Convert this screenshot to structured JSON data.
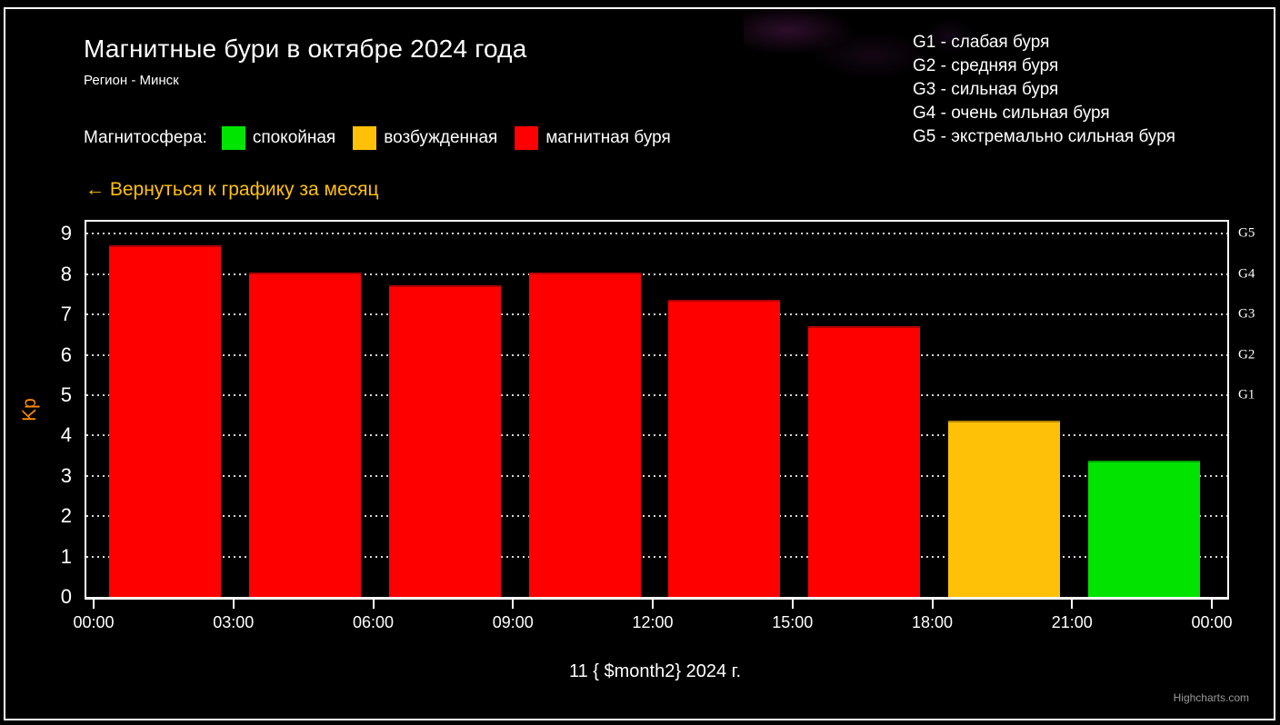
{
  "title": "Магнитные бури в октябре 2024 года",
  "subtitle": "Регион - Минск",
  "legend": {
    "label": "Магнитосфера:",
    "items": [
      {
        "name": "спокойная",
        "color": "#00e400"
      },
      {
        "name": "возбужденная",
        "color": "#ffc107"
      },
      {
        "name": "магнитная буря",
        "color": "#ff0000"
      }
    ]
  },
  "g_scale": [
    "G1 - слабая буря",
    "G2 - средняя буря",
    "G3 - сильная буря",
    "G4 - очень сильная буря",
    "G5 - экстремально сильная буря"
  ],
  "back_link": "← Вернуться к графику за месяц",
  "credits": "Highcharts.com",
  "chart_data": {
    "type": "bar",
    "title": "Магнитные бури в октябре 2024 года",
    "subtitle": "Регион - Минск",
    "x_tick_labels": [
      "00:00",
      "03:00",
      "06:00",
      "09:00",
      "12:00",
      "15:00",
      "18:00",
      "21:00",
      "00:00"
    ],
    "values": [
      8.67,
      8,
      7.67,
      8,
      7.33,
      6.67,
      4.33,
      3.33
    ],
    "bar_states": [
      "storm",
      "storm",
      "storm",
      "storm",
      "storm",
      "storm",
      "excited",
      "quiet"
    ],
    "colors": {
      "quiet": "#00e400",
      "excited": "#ffc107",
      "storm": "#ff0000"
    },
    "ylabel": "Kp",
    "xlabel": "11 { $month2} 2024 г.",
    "ylim": [
      0,
      9.3
    ],
    "yticks": [
      0,
      1,
      2,
      3,
      4,
      5,
      6,
      7,
      8,
      9
    ],
    "right_axis_labels": [
      {
        "value": 5,
        "label": "G1"
      },
      {
        "value": 6,
        "label": "G2"
      },
      {
        "value": 7,
        "label": "G3"
      },
      {
        "value": 8,
        "label": "G4"
      },
      {
        "value": 9,
        "label": "G5"
      }
    ],
    "grid": "dotted",
    "legend_position": "top"
  }
}
